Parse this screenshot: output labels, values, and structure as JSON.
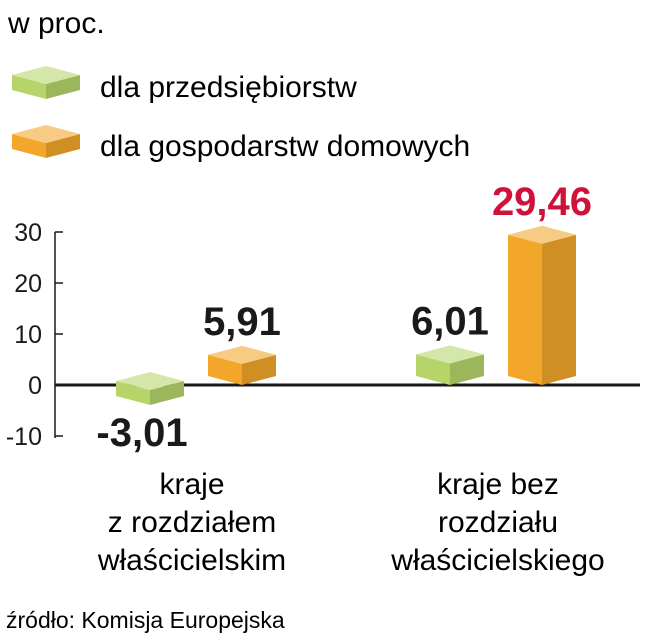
{
  "unit_label": "w proc.",
  "source": "źródło: Komisja Europejska",
  "colors": {
    "series_0": "#b5d56a",
    "series_1": "#f2a62a",
    "highlight": "#d0123b",
    "text": "#1a1a1a"
  },
  "chart_data": {
    "type": "bar",
    "categories": [
      [
        "kraje",
        "z rozdziałem",
        "właścicielskim"
      ],
      [
        "kraje bez",
        "rozdziału",
        "właścicielskiego"
      ]
    ],
    "series": [
      {
        "name": "dla przedsiębiorstw",
        "values": [
          -3.01,
          6.01
        ],
        "labels": [
          "-3,01",
          "6,01"
        ]
      },
      {
        "name": "dla gospodarstw domowych",
        "values": [
          5.91,
          29.46
        ],
        "labels": [
          "5,91",
          "29,46"
        ]
      }
    ],
    "highlighted": {
      "series": 1,
      "index": 1
    },
    "ylim": [
      -10,
      30
    ],
    "yticks": [
      30,
      20,
      10,
      0,
      -10
    ],
    "ytick_labels": [
      "30",
      "20",
      "10",
      "0",
      "-10"
    ],
    "legend_position": "top-left",
    "grid": false
  }
}
